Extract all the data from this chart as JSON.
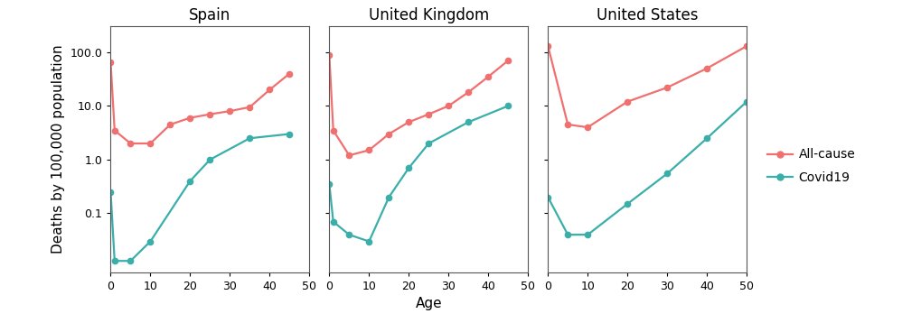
{
  "countries": [
    "Spain",
    "United Kingdom",
    "United States"
  ],
  "allcause_data": {
    "Spain": {
      "x": [
        0,
        1,
        5,
        10,
        15,
        20,
        25,
        30,
        35,
        40,
        45
      ],
      "y": [
        65,
        3.5,
        2.0,
        2.0,
        4.5,
        6.0,
        7.0,
        8.0,
        9.5,
        20.0,
        40.0
      ]
    },
    "United Kingdom": {
      "x": [
        0,
        1,
        5,
        10,
        15,
        20,
        25,
        30,
        35,
        40,
        45
      ],
      "y": [
        90,
        3.5,
        1.2,
        1.5,
        3.0,
        5.0,
        7.0,
        10.0,
        18.0,
        35.0,
        70.0
      ]
    },
    "United States": {
      "x": [
        0,
        5,
        10,
        20,
        30,
        40,
        50
      ],
      "y": [
        130,
        4.5,
        4.0,
        12.0,
        22.0,
        50.0,
        130.0
      ]
    }
  },
  "covid19_data": {
    "Spain": {
      "x": [
        0,
        1,
        5,
        10,
        20,
        25,
        35,
        45
      ],
      "y": [
        0.25,
        0.013,
        0.013,
        0.03,
        0.4,
        1.0,
        2.5,
        3.0
      ]
    },
    "United Kingdom": {
      "x": [
        0,
        1,
        5,
        10,
        15,
        20,
        25,
        35,
        45
      ],
      "y": [
        0.35,
        0.07,
        0.04,
        0.03,
        0.2,
        0.7,
        2.0,
        5.0,
        10.0
      ]
    },
    "United States": {
      "x": [
        0,
        5,
        10,
        20,
        30,
        40,
        50
      ],
      "y": [
        0.2,
        0.04,
        0.04,
        0.15,
        0.55,
        2.5,
        12.0
      ]
    }
  },
  "xlim": {
    "Spain": [
      0,
      50
    ],
    "United Kingdom": [
      0,
      50
    ],
    "United States": [
      0,
      50
    ]
  },
  "xticks": {
    "Spain": [
      0,
      10,
      20,
      30,
      40,
      50
    ],
    "United Kingdom": [
      0,
      10,
      20,
      30,
      40,
      50
    ],
    "United States": [
      0,
      10,
      20,
      30,
      40,
      50
    ]
  },
  "ylim": [
    0.008,
    300
  ],
  "yticks": [
    0.1,
    1.0,
    10.0,
    100.0
  ],
  "ytick_labels": [
    "0.1",
    "1.0",
    "10.0",
    "100.0"
  ],
  "allcause_color": "#f07070",
  "covid19_color": "#3aafa9",
  "background_color": "#ffffff",
  "ylabel": "Deaths by 100,000 population",
  "xlabel": "Age",
  "legend_labels": [
    "All-cause",
    "Covid19"
  ],
  "marker": "o",
  "markersize": 4.5,
  "linewidth": 1.6,
  "title_fontsize": 12,
  "label_fontsize": 11,
  "tick_fontsize": 9
}
